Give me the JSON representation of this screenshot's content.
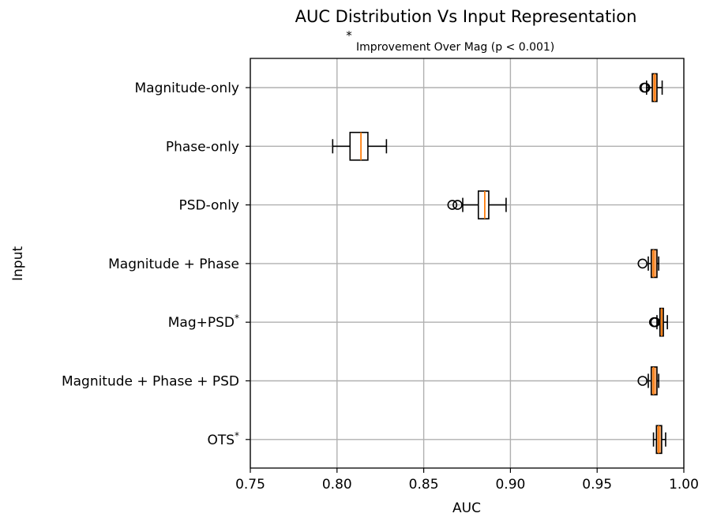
{
  "chart_data": {
    "type": "boxplot",
    "orientation": "horizontal",
    "title": "AUC Distribution Vs Input Representation",
    "subtitle_marker": "*",
    "subtitle": "Improvement Over Mag (p < 0.001)",
    "xlabel": "AUC",
    "ylabel": "Input",
    "xlim": [
      0.75,
      1.0
    ],
    "xticks": [
      "0.75",
      "0.80",
      "0.85",
      "0.90",
      "0.95",
      "1.00"
    ],
    "xtick_values": [
      0.75,
      0.8,
      0.85,
      0.9,
      0.95,
      1.0
    ],
    "grid": true,
    "box_fill_color": "#f5a463",
    "median_color": "#ff7f0e",
    "series": [
      {
        "label": "Magnitude-only",
        "marker": "",
        "whislo": 0.9785,
        "q1": 0.9818,
        "median": 0.9832,
        "q3": 0.9845,
        "whishi": 0.9875,
        "fliers": [
          0.9772,
          0.9778
        ]
      },
      {
        "label": "Phase-only",
        "marker": "",
        "whislo": 0.7975,
        "q1": 0.8075,
        "median": 0.8138,
        "q3": 0.8178,
        "whishi": 0.8285,
        "fliers": []
      },
      {
        "label": "PSD-only",
        "marker": "",
        "whislo": 0.8725,
        "q1": 0.8815,
        "median": 0.8852,
        "q3": 0.8875,
        "whishi": 0.8975,
        "fliers": [
          0.8665,
          0.8695
        ]
      },
      {
        "label": "Magnitude + Phase",
        "marker": "",
        "whislo": 0.9795,
        "q1": 0.9812,
        "median": 0.9825,
        "q3": 0.9845,
        "whishi": 0.9855,
        "fliers": [
          0.9762
        ]
      },
      {
        "label": "Mag+PSD",
        "marker": "*",
        "whislo": 0.9845,
        "q1": 0.9862,
        "median": 0.9872,
        "q3": 0.9882,
        "whishi": 0.9905,
        "fliers": [
          0.9828,
          0.9835
        ]
      },
      {
        "label": "Magnitude + Phase + PSD",
        "marker": "",
        "whislo": 0.9795,
        "q1": 0.9812,
        "median": 0.9825,
        "q3": 0.9845,
        "whishi": 0.9855,
        "fliers": [
          0.9762
        ]
      },
      {
        "label": "OTS",
        "marker": "*",
        "whislo": 0.9825,
        "q1": 0.9842,
        "median": 0.9855,
        "q3": 0.9872,
        "whishi": 0.9895,
        "fliers": []
      }
    ]
  }
}
